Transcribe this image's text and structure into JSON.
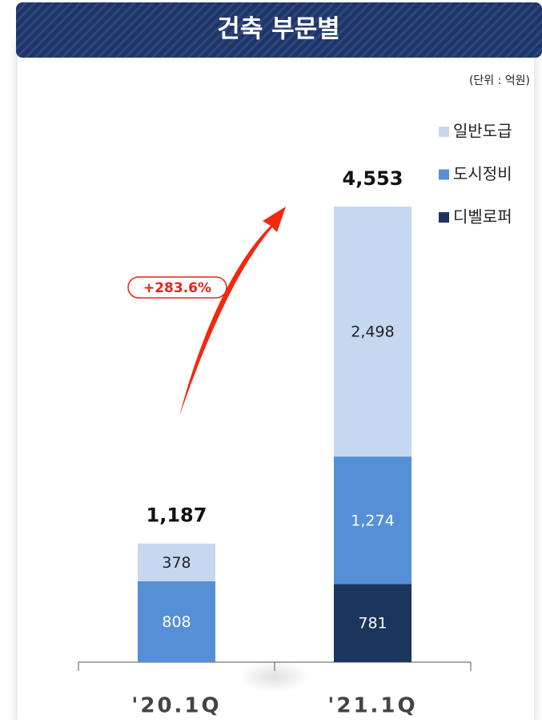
{
  "chart_data": {
    "type": "stacked_bar",
    "title": "건축 부문별",
    "unit": "(단위 : 억원)",
    "categories": [
      "'20.1Q",
      "'21.1Q"
    ],
    "series": [
      {
        "name": "디벨로퍼",
        "color": "#1b365d",
        "values": [
          null,
          781
        ],
        "value_labels": [
          null,
          "781"
        ]
      },
      {
        "name": "도시정비",
        "color": "#5590d6",
        "values": [
          808,
          1274
        ],
        "value_labels": [
          "808",
          "1,274"
        ]
      },
      {
        "name": "일반도급",
        "color": "#c6d8f0",
        "values": [
          378,
          2498
        ],
        "value_labels": [
          "378",
          "2,498"
        ]
      }
    ],
    "totals": [
      1187,
      4553
    ],
    "total_labels": [
      "1,187",
      "4,553"
    ],
    "annotation": "+283.6%"
  }
}
